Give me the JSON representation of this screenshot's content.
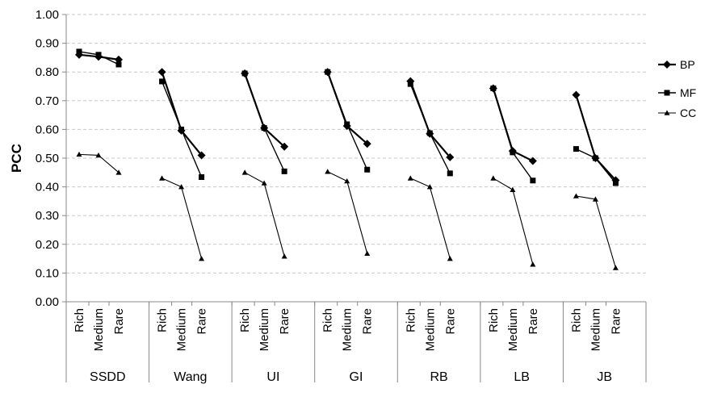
{
  "chart_data": {
    "type": "line",
    "ylabel": "PCC",
    "ylim": [
      0,
      1
    ],
    "ytick_step": 0.1,
    "yticks": [
      "0.00",
      "0.10",
      "0.20",
      "0.30",
      "0.40",
      "0.50",
      "0.60",
      "0.70",
      "0.80",
      "0.90",
      "1.00"
    ],
    "grid": true,
    "legend_position": "right",
    "subcategories": [
      "Rich",
      "Medium",
      "Rare"
    ],
    "groups": [
      "SSDD",
      "Wang",
      "UI",
      "GI",
      "RB",
      "LB",
      "JB"
    ],
    "series": [
      {
        "name": "BP",
        "marker": "diamond",
        "values": [
          [
            0.86,
            0.853,
            0.843
          ],
          [
            0.8,
            0.596,
            0.51
          ],
          [
            0.795,
            0.605,
            0.54
          ],
          [
            0.8,
            0.612,
            0.55
          ],
          [
            0.768,
            0.585,
            0.503
          ],
          [
            0.743,
            0.525,
            0.49
          ],
          [
            0.72,
            0.5,
            0.423
          ]
        ]
      },
      {
        "name": "MF",
        "marker": "square",
        "values": [
          [
            0.871,
            0.86,
            0.826
          ],
          [
            0.767,
            0.6,
            0.434
          ],
          [
            0.795,
            0.605,
            0.454
          ],
          [
            0.8,
            0.618,
            0.46
          ],
          [
            0.758,
            0.587,
            0.447
          ],
          [
            0.743,
            0.52,
            0.422
          ],
          [
            0.532,
            0.5,
            0.413
          ]
        ]
      },
      {
        "name": "CC",
        "marker": "triangle",
        "values": [
          [
            0.513,
            0.51,
            0.45
          ],
          [
            0.43,
            0.4,
            0.15
          ],
          [
            0.45,
            0.413,
            0.158
          ],
          [
            0.453,
            0.42,
            0.168
          ],
          [
            0.43,
            0.4,
            0.15
          ],
          [
            0.43,
            0.39,
            0.13
          ],
          [
            0.368,
            0.357,
            0.118
          ]
        ]
      }
    ]
  }
}
